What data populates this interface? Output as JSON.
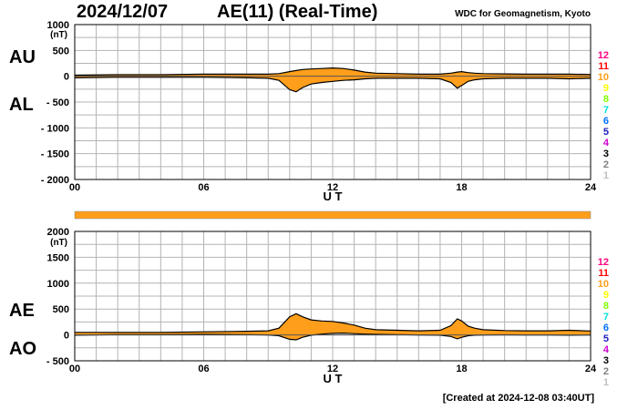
{
  "header": {
    "date": "2024/12/07",
    "title": "AE(11) (Real-Time)",
    "source": "WDC for Geomagnetism, Kyoto",
    "created": "[Created at 2024-12-08 03:40UT]"
  },
  "colors": {
    "fill": "#ff9e1b",
    "line": "#000000",
    "grid": "#b4b4b4",
    "bar": "#ff9e1b"
  },
  "legend": {
    "labels": [
      "12",
      "11",
      "10",
      "9",
      "8",
      "7",
      "6",
      "5",
      "4",
      "3",
      "2",
      "1"
    ],
    "colors": [
      "#ff0080",
      "#ff0000",
      "#ff9e1b",
      "#ffff00",
      "#80ff00",
      "#00e0e0",
      "#0070ff",
      "#2020c0",
      "#d000d0",
      "#000000",
      "#808080",
      "#c0c0c0"
    ]
  },
  "chart_data": [
    {
      "type": "area",
      "panel": "AU/AL",
      "series_labels": [
        "AU",
        "AL"
      ],
      "unit": "(nT)",
      "xlabel": "U T",
      "xlim": [
        0,
        24
      ],
      "ylim": [
        -2000,
        1000
      ],
      "xticks": [
        "00",
        "06",
        "12",
        "18",
        "24"
      ],
      "yticks": [
        "1000",
        "500",
        "0",
        "- 500",
        "- 1000",
        "- 1500",
        "- 2000"
      ],
      "x": [
        0,
        2,
        4,
        6,
        8,
        9,
        9.5,
        10,
        10.3,
        10.6,
        11,
        11.5,
        12,
        12.5,
        13,
        13.5,
        14,
        15,
        16,
        17,
        17.5,
        17.8,
        18,
        18.3,
        18.6,
        19,
        20,
        21,
        22,
        23,
        24
      ],
      "series": [
        {
          "name": "AU",
          "values": [
            20,
            30,
            30,
            40,
            40,
            40,
            50,
            90,
            110,
            130,
            140,
            150,
            160,
            150,
            120,
            80,
            60,
            50,
            40,
            40,
            60,
            80,
            90,
            70,
            60,
            50,
            45,
            40,
            40,
            40,
            35
          ]
        },
        {
          "name": "AL",
          "values": [
            -30,
            -20,
            -20,
            -20,
            -30,
            -40,
            -80,
            -260,
            -300,
            -220,
            -150,
            -120,
            -100,
            -80,
            -70,
            -50,
            -40,
            -40,
            -40,
            -50,
            -120,
            -230,
            -180,
            -100,
            -70,
            -50,
            -40,
            -40,
            -40,
            -50,
            -40
          ]
        }
      ]
    },
    {
      "type": "area",
      "panel": "AE/AO",
      "series_labels": [
        "AE",
        "AO"
      ],
      "unit": "(nT)",
      "xlabel": "U T",
      "xlim": [
        0,
        24
      ],
      "ylim": [
        -500,
        2000
      ],
      "xticks": [
        "00",
        "06",
        "12",
        "18",
        "24"
      ],
      "yticks": [
        "2000",
        "1500",
        "1000",
        "500",
        "0",
        "- 500"
      ],
      "x": [
        0,
        2,
        4,
        6,
        8,
        9,
        9.5,
        10,
        10.3,
        10.6,
        11,
        11.5,
        12,
        12.5,
        13,
        13.5,
        14,
        15,
        16,
        17,
        17.5,
        17.8,
        18,
        18.3,
        18.6,
        19,
        20,
        21,
        22,
        23,
        24
      ],
      "series": [
        {
          "name": "AE",
          "values": [
            50,
            50,
            50,
            60,
            70,
            80,
            130,
            350,
            410,
            350,
            290,
            270,
            260,
            230,
            190,
            130,
            100,
            90,
            80,
            90,
            180,
            310,
            270,
            170,
            130,
            100,
            85,
            80,
            80,
            90,
            75
          ]
        },
        {
          "name": "AO",
          "values": [
            -5,
            5,
            5,
            10,
            5,
            0,
            -15,
            -85,
            -95,
            -45,
            -5,
            15,
            30,
            35,
            25,
            15,
            10,
            5,
            0,
            -5,
            -30,
            -75,
            -45,
            -15,
            -5,
            0,
            2,
            0,
            0,
            -5,
            -2
          ]
        }
      ]
    }
  ]
}
